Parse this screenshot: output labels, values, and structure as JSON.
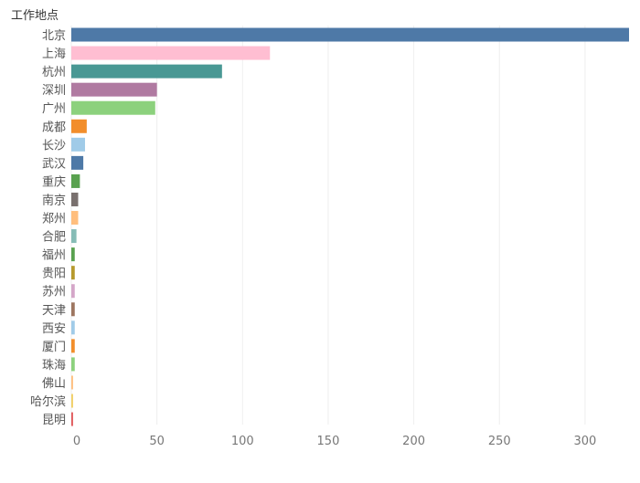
{
  "chart_data": {
    "type": "bar",
    "orientation": "horizontal",
    "ylabel": "工作地点",
    "xlabel": "",
    "xlim": [
      0,
      327
    ],
    "xticks": [
      0,
      50,
      100,
      150,
      200,
      250,
      300
    ],
    "grid": true,
    "categories": [
      "北京",
      "上海",
      "杭州",
      "深圳",
      "广州",
      "成都",
      "长沙",
      "武汉",
      "重庆",
      "南京",
      "郑州",
      "合肥",
      "福州",
      "贵阳",
      "苏州",
      "天津",
      "西安",
      "厦门",
      "珠海",
      "佛山",
      "哈尔滨",
      "昆明"
    ],
    "values": [
      326,
      116,
      88,
      50,
      49,
      9,
      8,
      7,
      5,
      4,
      4,
      3,
      2,
      2,
      2,
      2,
      2,
      2,
      2,
      1,
      1,
      1
    ],
    "colors": [
      "#4e79a7",
      "#ffbed2",
      "#499894",
      "#b07aa1",
      "#8cd17d",
      "#f28e2b",
      "#a0cbe8",
      "#4e79a7",
      "#59a14f",
      "#79706e",
      "#ffbe7d",
      "#86bcb6",
      "#59a14f",
      "#b6992d",
      "#d4a6c8",
      "#9d7660",
      "#a0cbe8",
      "#f28e2b",
      "#8cd17d",
      "#ffbe7d",
      "#f1ce63",
      "#e15759"
    ]
  }
}
